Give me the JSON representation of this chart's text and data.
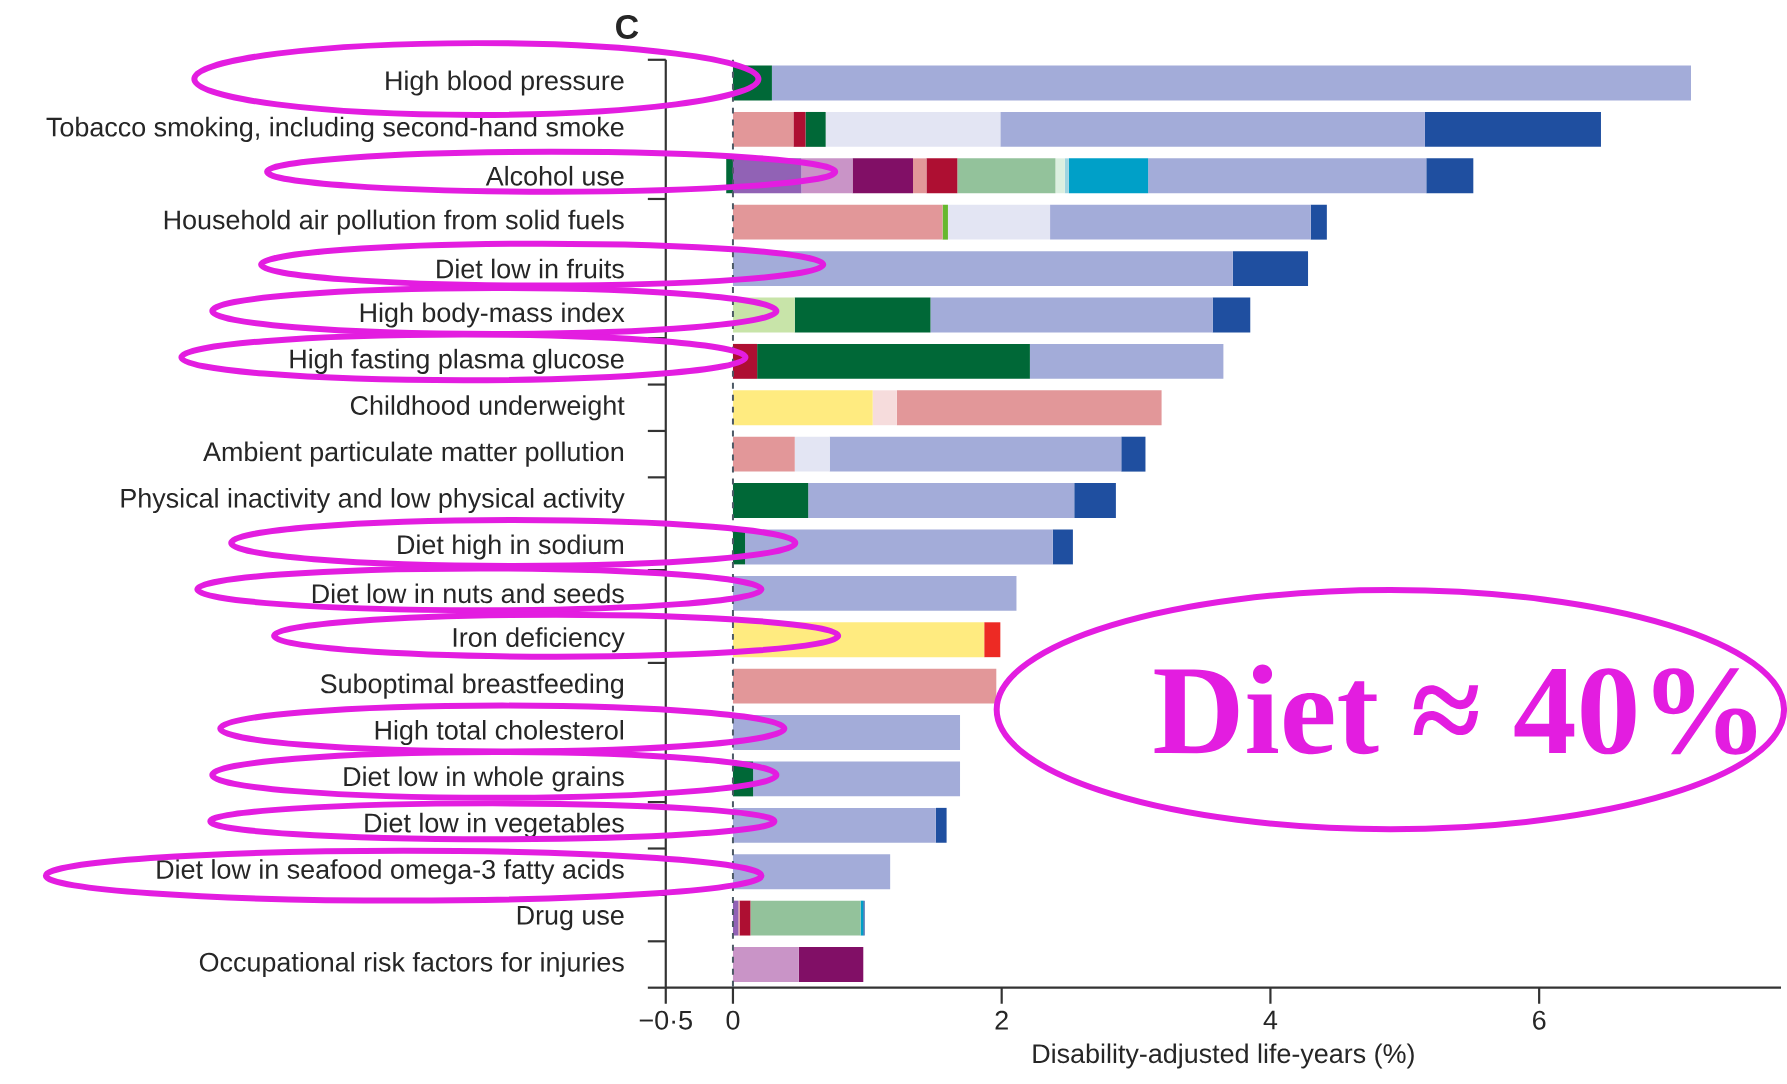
{
  "chart_data": {
    "type": "bar",
    "orientation": "horizontal",
    "stacked": true,
    "title": "C",
    "xlabel": "Disability-adjusted life-years (%)",
    "categories": [
      "High blood pressure",
      "Tobacco smoking, including second-hand smoke",
      "Alcohol use",
      "Household air pollution from solid fuels",
      "Diet low in fruits",
      "High body-mass index",
      "High fasting plasma glucose",
      "Childhood underweight",
      "Ambient particulate matter pollution",
      "Physical inactivity and low physical activity",
      "Diet high in sodium",
      "Diet low in nuts and seeds",
      "Iron deficiency",
      "Suboptimal breastfeeding",
      "High total cholesterol",
      "Diet low in whole grains",
      "Diet low in vegetables",
      "Diet low in seafood omega-3 fatty acids",
      "Drug use",
      "Occupational risk factors for injuries"
    ],
    "series": [
      {
        "color": "#9162b5",
        "values": [
          null,
          null,
          0.51,
          null,
          null,
          null,
          null,
          null,
          null,
          null,
          null,
          null,
          null,
          null,
          null,
          null,
          null,
          null,
          0.04,
          null
        ]
      },
      {
        "color": "#c994c7",
        "values": [
          null,
          null,
          0.38,
          null,
          null,
          null,
          null,
          null,
          null,
          null,
          null,
          null,
          null,
          null,
          null,
          null,
          null,
          null,
          null,
          0.49
        ]
      },
      {
        "color": "#810f66",
        "values": [
          null,
          null,
          0.45,
          null,
          null,
          null,
          null,
          null,
          null,
          null,
          null,
          null,
          null,
          null,
          null,
          null,
          null,
          null,
          null,
          0.48
        ]
      },
      {
        "color": "#ffeb80",
        "values": [
          null,
          null,
          null,
          null,
          null,
          null,
          null,
          1.04,
          null,
          null,
          null,
          null,
          1.87,
          null,
          null,
          null,
          null,
          null,
          null,
          null
        ]
      },
      {
        "color": "#f6dcdc",
        "values": [
          null,
          null,
          null,
          null,
          null,
          null,
          null,
          0.18,
          null,
          null,
          null,
          null,
          null,
          null,
          null,
          null,
          null,
          null,
          null,
          null
        ]
      },
      {
        "color": "#e29799",
        "values": [
          null,
          0.45,
          0.1,
          1.56,
          null,
          null,
          null,
          1.97,
          0.46,
          null,
          null,
          null,
          null,
          1.96,
          null,
          null,
          null,
          null,
          0.01,
          null
        ]
      },
      {
        "color": "#66b82e",
        "values": [
          null,
          null,
          null,
          0.04,
          null,
          null,
          null,
          null,
          null,
          null,
          null,
          null,
          null,
          null,
          null,
          null,
          null,
          null,
          null,
          null
        ]
      },
      {
        "color": "#ae0f32",
        "values": [
          null,
          0.09,
          0.23,
          null,
          null,
          null,
          0.18,
          null,
          null,
          null,
          null,
          null,
          null,
          null,
          null,
          null,
          null,
          null,
          0.08,
          null
        ]
      },
      {
        "color": "#ed2a24",
        "values": [
          null,
          null,
          null,
          null,
          null,
          null,
          null,
          null,
          null,
          null,
          null,
          null,
          0.12,
          null,
          null,
          null,
          null,
          null,
          null,
          null
        ]
      },
      {
        "color": "#c8e4a9",
        "values": [
          null,
          null,
          null,
          null,
          null,
          0.46,
          null,
          null,
          null,
          null,
          null,
          null,
          null,
          null,
          null,
          null,
          null,
          null,
          null,
          null
        ]
      },
      {
        "color": "#006837",
        "values": [
          0.29,
          0.15,
          -0.05,
          null,
          null,
          1.01,
          2.03,
          null,
          null,
          0.56,
          0.09,
          null,
          null,
          null,
          null,
          0.15,
          null,
          null,
          null,
          null
        ]
      },
      {
        "color": "#93c29b",
        "values": [
          null,
          null,
          0.73,
          null,
          null,
          null,
          null,
          null,
          null,
          null,
          null,
          null,
          null,
          null,
          null,
          null,
          null,
          null,
          0.82,
          null
        ]
      },
      {
        "color": "#dcefe0",
        "values": [
          null,
          null,
          0.07,
          null,
          null,
          null,
          null,
          null,
          null,
          null,
          null,
          null,
          null,
          null,
          null,
          null,
          null,
          null,
          null,
          null
        ]
      },
      {
        "color": "#9fd4e0",
        "values": [
          null,
          null,
          0.03,
          null,
          null,
          null,
          null,
          null,
          null,
          null,
          null,
          null,
          null,
          null,
          null,
          null,
          null,
          null,
          null,
          null
        ]
      },
      {
        "color": "#00a0c8",
        "values": [
          null,
          null,
          0.59,
          null,
          null,
          null,
          null,
          null,
          null,
          null,
          null,
          null,
          null,
          null,
          null,
          null,
          null,
          null,
          0.02,
          null
        ]
      },
      {
        "color": "#e3e5f3",
        "values": [
          null,
          1.3,
          null,
          0.76,
          null,
          null,
          null,
          null,
          0.26,
          null,
          null,
          null,
          null,
          null,
          null,
          null,
          null,
          null,
          null,
          null
        ]
      },
      {
        "color": "#a3acd9",
        "values": [
          6.84,
          3.16,
          2.07,
          1.94,
          3.72,
          2.1,
          1.44,
          null,
          2.17,
          1.98,
          2.29,
          2.11,
          null,
          null,
          1.69,
          1.54,
          1.51,
          1.17,
          null,
          null
        ]
      },
      {
        "color": "#1f4fa0",
        "values": [
          null,
          1.31,
          0.35,
          0.12,
          0.56,
          0.28,
          null,
          null,
          0.18,
          0.31,
          0.15,
          null,
          null,
          null,
          null,
          null,
          0.08,
          null,
          0.01,
          null
        ]
      }
    ],
    "xlim": [
      -0.5,
      7.8
    ],
    "xticks": [
      {
        "value": -0.5,
        "label": "−0·5"
      },
      0,
      2,
      4,
      6
    ],
    "ref_lines": [
      {
        "axis": "x",
        "value": 0,
        "line_style": "dashed",
        "color": "#4d5a66"
      }
    ],
    "annotations": [
      "Diet ≈ 40%"
    ]
  }
}
